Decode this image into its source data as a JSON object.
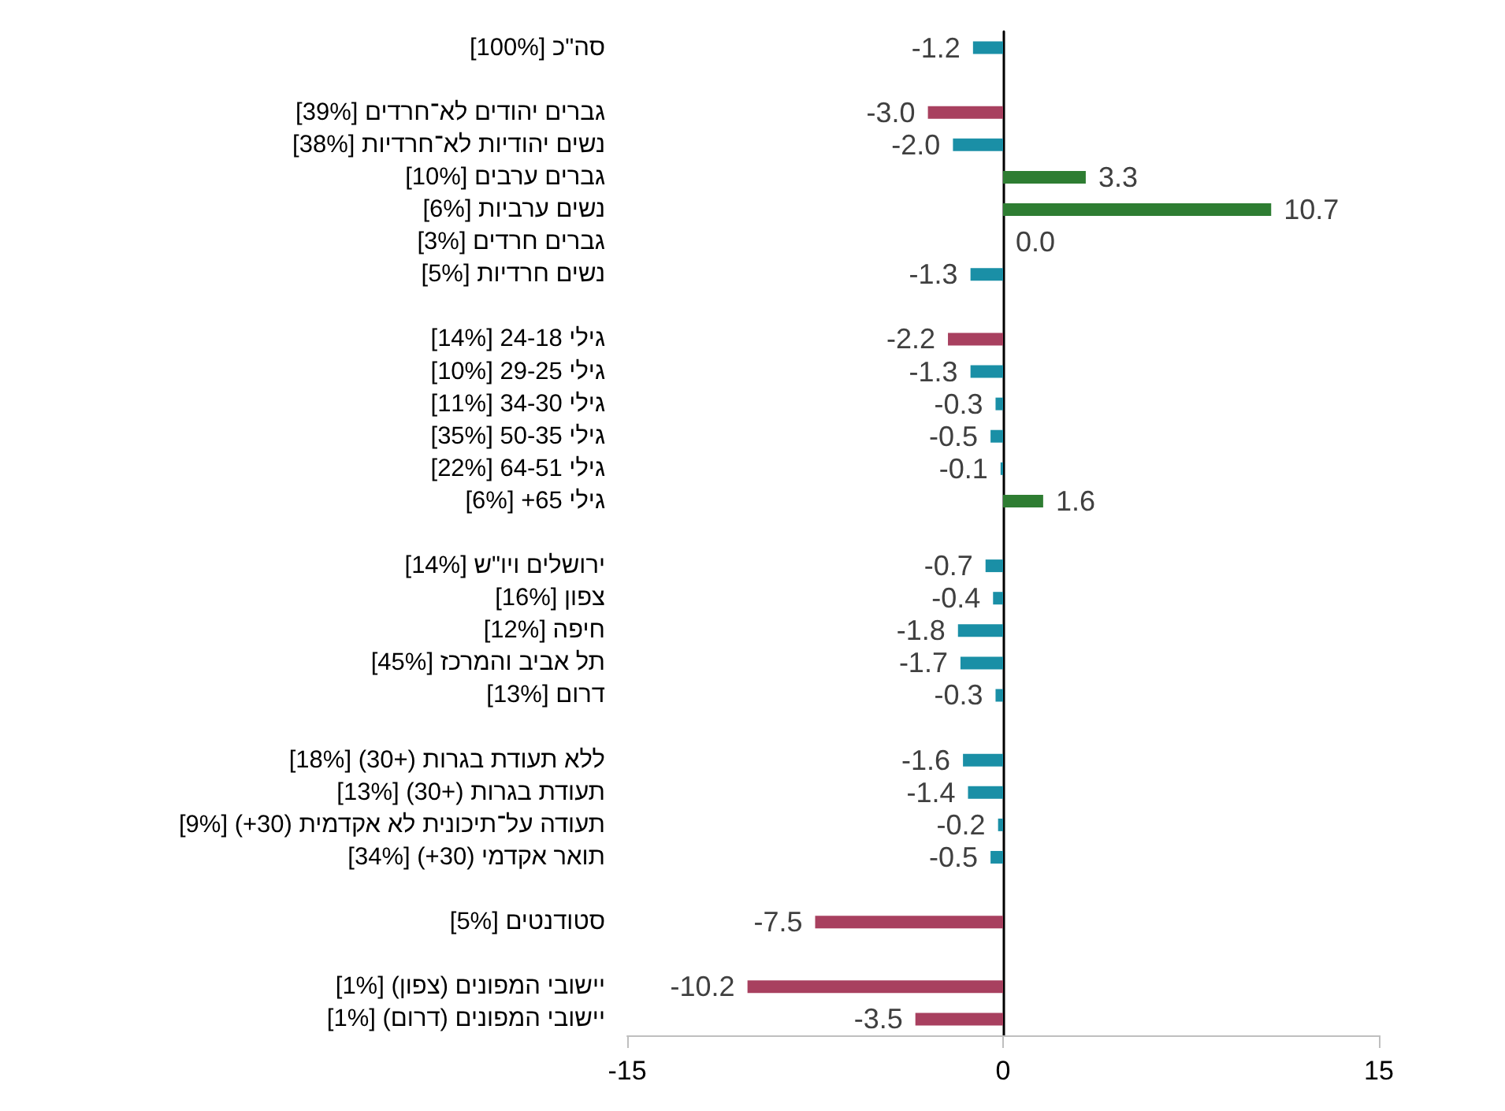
{
  "chart_data": {
    "type": "bar",
    "orientation": "horizontal",
    "categories": [
      "סה\"כ [100%]",
      null,
      "גברים יהודים לא־חרדים [39%]",
      "נשים יהודיות לא־חרדיות [38%]",
      "גברים ערבים [10%]",
      "נשים ערביות [6%]",
      "גברים חרדים [3%]",
      "נשים חרדיות [5%]",
      null,
      "גילי 24-18 [14%]",
      "גילי 29-25 [10%]",
      "גילי 34-30 [11%]",
      "גילי 50-35 [35%]",
      "גילי 64-51 [22%]",
      "גילי 65+ [6%]",
      null,
      "ירושלים ויו\"ש [14%]",
      "צפון [16%]",
      "חיפה [12%]",
      "תל אביב והמרכז [45%]",
      "דרום [13%]",
      null,
      "ללא תעודת בגרות (+30) [18%]",
      "תעודת בגרות (+30) [13%]",
      "תעודה על־תיכונית לא אקדמית (30+) [9%]",
      "תואר אקדמי (30+) [34%]",
      null,
      "סטודנטים [5%]",
      null,
      "יישובי המפונים (צפון) [1%]",
      "יישובי המפונים (דרום) [1%]"
    ],
    "values": [
      -1.2,
      null,
      -3.0,
      -2.0,
      3.3,
      10.7,
      0.0,
      -1.3,
      null,
      -2.2,
      -1.3,
      -0.3,
      -0.5,
      -0.1,
      1.6,
      null,
      -0.7,
      -0.4,
      -1.8,
      -1.7,
      -0.3,
      null,
      -1.6,
      -1.4,
      -0.2,
      -0.5,
      null,
      -7.5,
      null,
      -10.2,
      -3.5
    ],
    "value_labels": [
      "-1.2",
      null,
      "-3.0",
      "-2.0",
      "3.3",
      "10.7",
      "0.0",
      "-1.3",
      null,
      "-2.2",
      "-1.3",
      "-0.3",
      "-0.5",
      "-0.1",
      "1.6",
      null,
      "-0.7",
      "-0.4",
      "-1.8",
      "-1.7",
      "-0.3",
      null,
      "-1.6",
      "-1.4",
      "-0.2",
      "-0.5",
      null,
      "-7.5",
      null,
      "-10.2",
      "-3.5"
    ],
    "colors": [
      "#1a8fa6",
      null,
      "#a8405f",
      "#1a8fa6",
      "#2e7d32",
      "#2e7d32",
      "#1a8fa6",
      "#1a8fa6",
      null,
      "#a8405f",
      "#1a8fa6",
      "#1a8fa6",
      "#1a8fa6",
      "#1a8fa6",
      "#2e7d32",
      null,
      "#1a8fa6",
      "#1a8fa6",
      "#1a8fa6",
      "#1a8fa6",
      "#1a8fa6",
      null,
      "#1a8fa6",
      "#1a8fa6",
      "#1a8fa6",
      "#1a8fa6",
      null,
      "#a8405f",
      null,
      "#a8405f",
      "#a8405f"
    ],
    "xlim": [
      -15,
      15
    ],
    "xticks": [
      -15,
      0,
      15
    ]
  }
}
